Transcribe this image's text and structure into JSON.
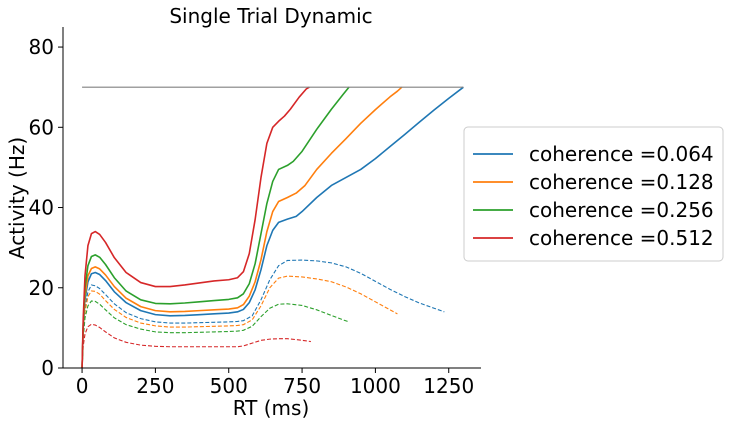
{
  "chart_data": {
    "type": "line",
    "title": "Single Trial Dynamic",
    "xlabel": "RT (ms)",
    "ylabel": "Activity (Hz)",
    "xlim": [
      -65,
      1360
    ],
    "ylim": [
      0,
      85
    ],
    "xticks": [
      0,
      250,
      500,
      750,
      1000,
      1250
    ],
    "yticks": [
      0,
      20,
      40,
      60,
      80
    ],
    "threshold": {
      "value": 70,
      "x": [
        0,
        1300
      ],
      "color": "#808080"
    },
    "grid": false,
    "legend_placement": "right-outside",
    "series": [
      {
        "name": "coherence =0.064",
        "color": "#1f77b4",
        "solid": [
          [
            0,
            0
          ],
          [
            4,
            10
          ],
          [
            10,
            17
          ],
          [
            20,
            21.5
          ],
          [
            32,
            23.5
          ],
          [
            45,
            23.8
          ],
          [
            60,
            23.3
          ],
          [
            80,
            21.8
          ],
          [
            110,
            19
          ],
          [
            150,
            16.3
          ],
          [
            200,
            14.3
          ],
          [
            250,
            13.3
          ],
          [
            300,
            13.0
          ],
          [
            350,
            13.1
          ],
          [
            400,
            13.3
          ],
          [
            450,
            13.5
          ],
          [
            500,
            13.7
          ],
          [
            530,
            14.0
          ],
          [
            550,
            14.6
          ],
          [
            570,
            16.3
          ],
          [
            590,
            19.5
          ],
          [
            610,
            24.5
          ],
          [
            630,
            30.5
          ],
          [
            650,
            34.3
          ],
          [
            670,
            36.3
          ],
          [
            700,
            37.1
          ],
          [
            730,
            37.8
          ],
          [
            750,
            39.0
          ],
          [
            800,
            42.5
          ],
          [
            850,
            45.5
          ],
          [
            900,
            47.5
          ],
          [
            950,
            49.5
          ],
          [
            1000,
            52.2
          ],
          [
            1050,
            55.2
          ],
          [
            1100,
            58.2
          ],
          [
            1150,
            61.3
          ],
          [
            1200,
            64.3
          ],
          [
            1250,
            67.2
          ],
          [
            1300,
            70.0
          ]
        ],
        "dashed": [
          [
            0,
            0
          ],
          [
            4,
            9
          ],
          [
            10,
            15
          ],
          [
            20,
            19
          ],
          [
            32,
            20.7
          ],
          [
            45,
            20.5
          ],
          [
            60,
            19.8
          ],
          [
            80,
            18.3
          ],
          [
            110,
            16
          ],
          [
            150,
            13.8
          ],
          [
            200,
            12.3
          ],
          [
            250,
            11.5
          ],
          [
            300,
            11.2
          ],
          [
            350,
            11.2
          ],
          [
            400,
            11.3
          ],
          [
            450,
            11.4
          ],
          [
            500,
            11.5
          ],
          [
            530,
            11.6
          ],
          [
            550,
            11.8
          ],
          [
            580,
            13
          ],
          [
            610,
            17
          ],
          [
            640,
            22
          ],
          [
            670,
            25.5
          ],
          [
            700,
            26.8
          ],
          [
            750,
            26.9
          ],
          [
            800,
            26.7
          ],
          [
            850,
            26.2
          ],
          [
            900,
            25.2
          ],
          [
            950,
            23.6
          ],
          [
            1000,
            21.6
          ],
          [
            1050,
            19.6
          ],
          [
            1100,
            17.8
          ],
          [
            1150,
            16.2
          ],
          [
            1200,
            14.9
          ],
          [
            1235,
            14.0
          ]
        ]
      },
      {
        "name": "coherence =0.128",
        "color": "#ff7f0e",
        "solid": [
          [
            0,
            0
          ],
          [
            4,
            10.5
          ],
          [
            10,
            18
          ],
          [
            20,
            23
          ],
          [
            32,
            24.8
          ],
          [
            45,
            25.2
          ],
          [
            60,
            24.7
          ],
          [
            80,
            23.2
          ],
          [
            110,
            20.3
          ],
          [
            150,
            17.4
          ],
          [
            200,
            15.3
          ],
          [
            250,
            14.3
          ],
          [
            300,
            14.0
          ],
          [
            350,
            14.1
          ],
          [
            400,
            14.3
          ],
          [
            450,
            14.5
          ],
          [
            500,
            14.7
          ],
          [
            530,
            15.0
          ],
          [
            550,
            15.8
          ],
          [
            570,
            17.9
          ],
          [
            590,
            21.5
          ],
          [
            610,
            27.0
          ],
          [
            630,
            34.0
          ],
          [
            650,
            39.0
          ],
          [
            670,
            41.5
          ],
          [
            700,
            42.5
          ],
          [
            730,
            43.6
          ],
          [
            760,
            45.5
          ],
          [
            800,
            49.5
          ],
          [
            850,
            53.5
          ],
          [
            900,
            57.2
          ],
          [
            950,
            61.0
          ],
          [
            1000,
            64.4
          ],
          [
            1050,
            67.6
          ],
          [
            1075,
            69.0
          ],
          [
            1090,
            70.0
          ]
        ],
        "dashed": [
          [
            0,
            0
          ],
          [
            4,
            8.5
          ],
          [
            10,
            14
          ],
          [
            20,
            17.8
          ],
          [
            32,
            19.2
          ],
          [
            45,
            19.1
          ],
          [
            60,
            18.4
          ],
          [
            80,
            16.8
          ],
          [
            110,
            14.6
          ],
          [
            150,
            12.6
          ],
          [
            200,
            11.2
          ],
          [
            250,
            10.5
          ],
          [
            300,
            10.2
          ],
          [
            350,
            10.2
          ],
          [
            400,
            10.3
          ],
          [
            450,
            10.4
          ],
          [
            500,
            10.5
          ],
          [
            530,
            10.6
          ],
          [
            550,
            10.8
          ],
          [
            580,
            12
          ],
          [
            610,
            15.5
          ],
          [
            640,
            20
          ],
          [
            670,
            22.4
          ],
          [
            700,
            22.9
          ],
          [
            750,
            22.7
          ],
          [
            800,
            22.2
          ],
          [
            850,
            21.5
          ],
          [
            900,
            20.2
          ],
          [
            950,
            18.5
          ],
          [
            1000,
            16.5
          ],
          [
            1050,
            14.5
          ],
          [
            1075,
            13.5
          ]
        ]
      },
      {
        "name": "coherence =0.256",
        "color": "#2ca02c",
        "solid": [
          [
            0,
            0
          ],
          [
            4,
            11
          ],
          [
            10,
            20
          ],
          [
            20,
            25.5
          ],
          [
            32,
            27.8
          ],
          [
            45,
            28.2
          ],
          [
            60,
            27.6
          ],
          [
            80,
            25.8
          ],
          [
            110,
            22.5
          ],
          [
            150,
            19.2
          ],
          [
            200,
            17.0
          ],
          [
            250,
            16.1
          ],
          [
            300,
            16.0
          ],
          [
            350,
            16.2
          ],
          [
            400,
            16.5
          ],
          [
            450,
            16.8
          ],
          [
            500,
            17.1
          ],
          [
            530,
            17.5
          ],
          [
            550,
            18.5
          ],
          [
            570,
            21.0
          ],
          [
            590,
            26.0
          ],
          [
            610,
            33.5
          ],
          [
            630,
            41.0
          ],
          [
            650,
            46.5
          ],
          [
            670,
            49.5
          ],
          [
            700,
            50.5
          ],
          [
            720,
            51.5
          ],
          [
            750,
            54.0
          ],
          [
            800,
            59.5
          ],
          [
            850,
            64.5
          ],
          [
            890,
            68.2
          ],
          [
            910,
            70.0
          ]
        ],
        "dashed": [
          [
            0,
            0
          ],
          [
            4,
            7.5
          ],
          [
            10,
            12.5
          ],
          [
            20,
            15.5
          ],
          [
            32,
            16.7
          ],
          [
            45,
            16.6
          ],
          [
            60,
            15.9
          ],
          [
            80,
            14.5
          ],
          [
            110,
            12.5
          ],
          [
            150,
            10.8
          ],
          [
            200,
            9.7
          ],
          [
            250,
            9.0
          ],
          [
            300,
            8.8
          ],
          [
            350,
            8.8
          ],
          [
            400,
            8.9
          ],
          [
            450,
            9.0
          ],
          [
            500,
            9.1
          ],
          [
            530,
            9.2
          ],
          [
            550,
            9.4
          ],
          [
            580,
            10.4
          ],
          [
            610,
            12.8
          ],
          [
            640,
            14.9
          ],
          [
            670,
            15.9
          ],
          [
            700,
            16.0
          ],
          [
            750,
            15.6
          ],
          [
            800,
            14.5
          ],
          [
            850,
            13.1
          ],
          [
            890,
            12.0
          ],
          [
            910,
            11.5
          ]
        ]
      },
      {
        "name": "coherence =0.512",
        "color": "#d62728",
        "solid": [
          [
            0,
            0
          ],
          [
            4,
            12.5
          ],
          [
            10,
            23
          ],
          [
            20,
            30.5
          ],
          [
            32,
            33.5
          ],
          [
            45,
            34.0
          ],
          [
            60,
            33.3
          ],
          [
            80,
            31.3
          ],
          [
            110,
            27.5
          ],
          [
            150,
            23.8
          ],
          [
            200,
            21.3
          ],
          [
            250,
            20.3
          ],
          [
            300,
            20.3
          ],
          [
            350,
            20.7
          ],
          [
            400,
            21.2
          ],
          [
            450,
            21.7
          ],
          [
            500,
            22.0
          ],
          [
            530,
            22.5
          ],
          [
            550,
            24.0
          ],
          [
            570,
            28.5
          ],
          [
            590,
            37.0
          ],
          [
            610,
            47.5
          ],
          [
            630,
            56.0
          ],
          [
            650,
            60.0
          ],
          [
            670,
            61.5
          ],
          [
            690,
            62.8
          ],
          [
            710,
            64.5
          ],
          [
            740,
            67.5
          ],
          [
            765,
            69.6
          ],
          [
            775,
            70.0
          ]
        ],
        "dashed": [
          [
            0,
            0
          ],
          [
            4,
            5.5
          ],
          [
            10,
            8.5
          ],
          [
            20,
            10.3
          ],
          [
            32,
            10.9
          ],
          [
            45,
            10.7
          ],
          [
            60,
            10.1
          ],
          [
            80,
            9.0
          ],
          [
            110,
            7.5
          ],
          [
            150,
            6.4
          ],
          [
            200,
            5.7
          ],
          [
            250,
            5.4
          ],
          [
            300,
            5.3
          ],
          [
            350,
            5.3
          ],
          [
            400,
            5.3
          ],
          [
            450,
            5.3
          ],
          [
            500,
            5.3
          ],
          [
            530,
            5.3
          ],
          [
            550,
            5.5
          ],
          [
            580,
            6.2
          ],
          [
            610,
            6.9
          ],
          [
            640,
            7.2
          ],
          [
            670,
            7.3
          ],
          [
            700,
            7.3
          ],
          [
            740,
            7.0
          ],
          [
            770,
            6.7
          ],
          [
            780,
            6.6
          ]
        ]
      }
    ]
  }
}
